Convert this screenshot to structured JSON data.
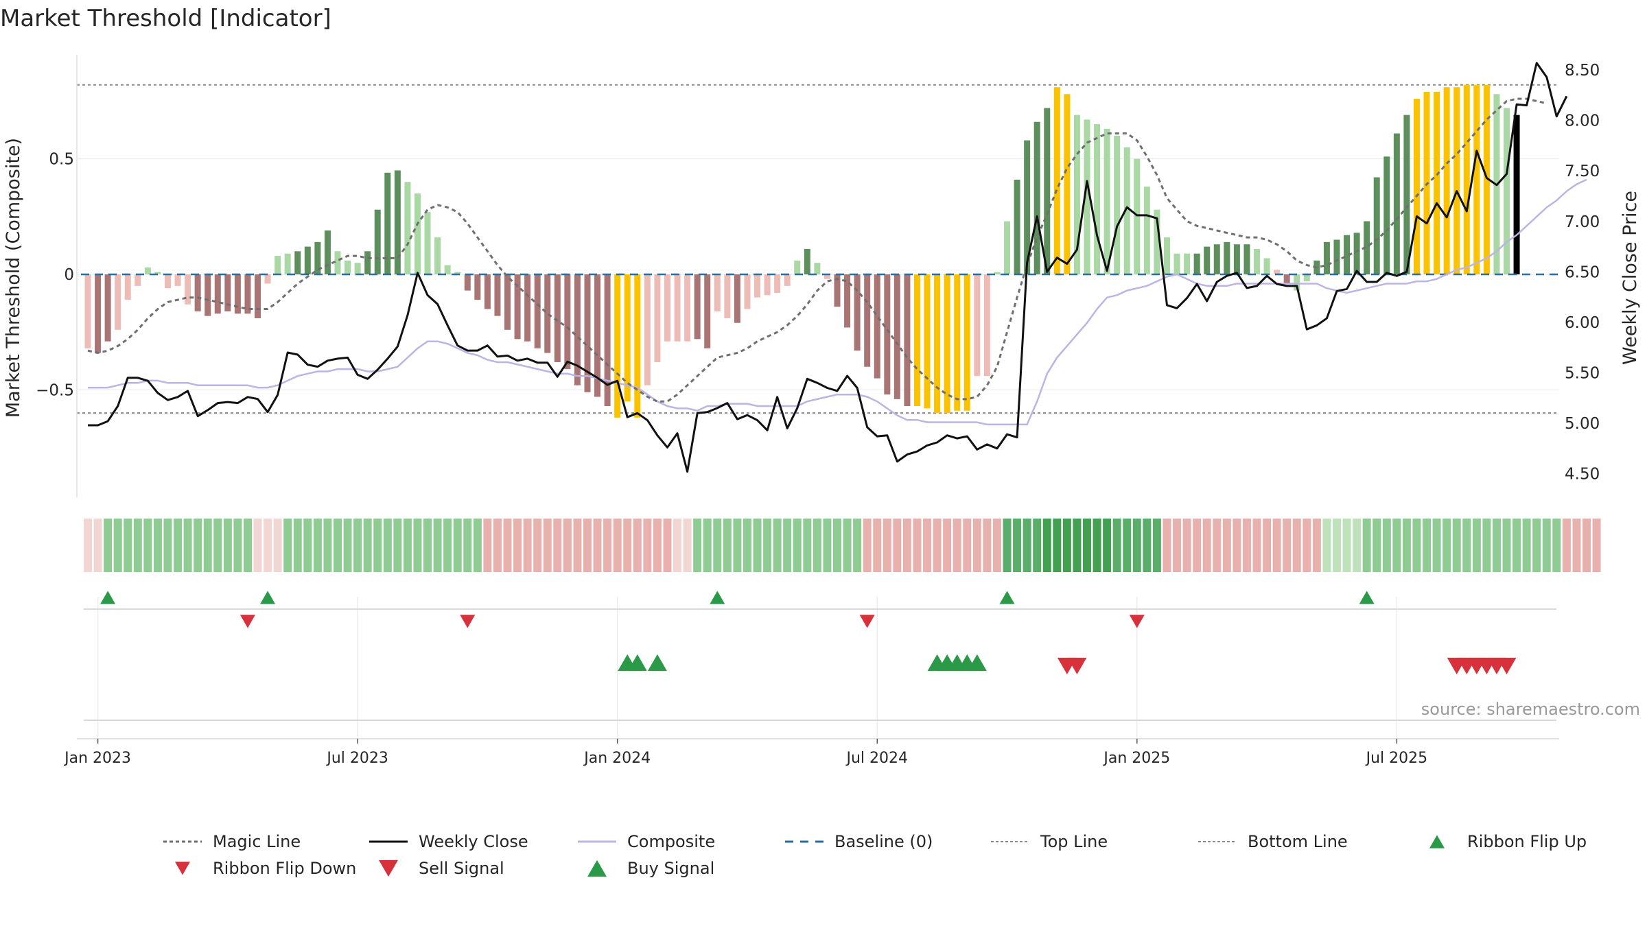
{
  "chart_data": {
    "type": "bar",
    "title": "Market Threshold [Indicator]",
    "ylabel": "Market Threshold (Composite)",
    "y2label": "Weekly Close Price",
    "source": "source: sharemaestro.com",
    "ylim": [
      -0.95,
      0.95
    ],
    "y2lim": [
      4.3,
      8.65
    ],
    "yticks": [
      {
        "v": 0.5,
        "t": "0.5"
      },
      {
        "v": 0,
        "t": "0"
      },
      {
        "v": -0.5,
        "t": "−0.5"
      }
    ],
    "y2ticks": [
      {
        "v": 8.5,
        "t": "8.50"
      },
      {
        "v": 8.0,
        "t": "8.00"
      },
      {
        "v": 7.5,
        "t": "7.50"
      },
      {
        "v": 7.0,
        "t": "7.00"
      },
      {
        "v": 6.5,
        "t": "6.50"
      },
      {
        "v": 6.0,
        "t": "6.00"
      },
      {
        "v": 5.5,
        "t": "5.50"
      },
      {
        "v": 5.0,
        "t": "5.00"
      },
      {
        "v": 4.5,
        "t": "4.50"
      }
    ],
    "xticks": [
      {
        "i": 1,
        "t": "Jan 2023"
      },
      {
        "i": 27,
        "t": "Jul 2023"
      },
      {
        "i": 53,
        "t": "Jan 2024"
      },
      {
        "i": 79,
        "t": "Jul 2024"
      },
      {
        "i": 105,
        "t": "Jan 2025"
      },
      {
        "i": 131,
        "t": "Jul 2025"
      }
    ],
    "top_line": 0.82,
    "bottom_line": -0.6,
    "colors": {
      "strong_up": "#5c8f5c",
      "weak_up": "#a9d8a5",
      "strong_down": "#a87574",
      "weak_down": "#edbcb7",
      "extreme": "#fbc200",
      "close": "#111111",
      "composite": "#bcb4e4",
      "magic": "#6f6f6f",
      "baseline": "#2b6c9e",
      "threshold": "#888888",
      "buy": "#2b9a48",
      "sell": "#d8313c",
      "grid": "#e8e8e8"
    },
    "series": [
      {
        "name": "Composite Bars",
        "values": [
          -0.32,
          -0.34,
          -0.29,
          -0.24,
          -0.11,
          -0.05,
          0.03,
          0.01,
          -0.06,
          -0.05,
          -0.13,
          -0.16,
          -0.18,
          -0.17,
          -0.16,
          -0.17,
          -0.17,
          -0.19,
          -0.04,
          0.08,
          0.09,
          0.1,
          0.12,
          0.14,
          0.19,
          0.1,
          0.06,
          0.05,
          0.1,
          0.28,
          0.44,
          0.45,
          0.4,
          0.35,
          0.27,
          0.16,
          0.04,
          0.01,
          -0.07,
          -0.11,
          -0.15,
          -0.18,
          -0.24,
          -0.28,
          -0.29,
          -0.32,
          -0.34,
          -0.38,
          -0.41,
          -0.48,
          -0.51,
          -0.53,
          -0.57,
          -0.62,
          -0.55,
          -0.62,
          -0.48,
          -0.38,
          -0.29,
          -0.29,
          -0.29,
          -0.28,
          -0.32,
          -0.16,
          -0.19,
          -0.21,
          -0.15,
          -0.1,
          -0.09,
          -0.08,
          -0.05,
          0.06,
          0.11,
          0.05,
          -0.02,
          -0.14,
          -0.23,
          -0.33,
          -0.4,
          -0.45,
          -0.52,
          -0.54,
          -0.57,
          -0.57,
          -0.58,
          -0.6,
          -0.6,
          -0.59,
          -0.59,
          -0.44,
          -0.44,
          0.01,
          0.23,
          0.41,
          0.58,
          0.66,
          0.72,
          0.81,
          0.78,
          0.69,
          0.67,
          0.65,
          0.63,
          0.6,
          0.55,
          0.5,
          0.38,
          0.28,
          0.16,
          0.09,
          0.09,
          0.09,
          0.12,
          0.13,
          0.14,
          0.13,
          0.13,
          0.11,
          0.07,
          0.02,
          -0.04,
          -0.07,
          -0.03,
          0.06,
          0.14,
          0.15,
          0.17,
          0.18,
          0.23,
          0.42,
          0.51,
          0.61,
          0.69,
          0.76,
          0.79,
          0.79,
          0.81,
          0.81,
          0.82,
          0.82,
          0.82,
          0.78,
          0.72,
          0.69
        ]
      },
      {
        "name": "Bar Style",
        "values": [
          "wd",
          "sd",
          "sd",
          "wd",
          "wd",
          "wd",
          "wu",
          "wu",
          "wd",
          "wd",
          "wd",
          "sd",
          "sd",
          "sd",
          "sd",
          "sd",
          "sd",
          "sd",
          "wd",
          "wu",
          "wu",
          "su",
          "su",
          "su",
          "su",
          "wu",
          "wu",
          "wu",
          "su",
          "su",
          "su",
          "su",
          "wu",
          "wu",
          "wu",
          "wu",
          "wu",
          "wu",
          "sd",
          "sd",
          "sd",
          "sd",
          "sd",
          "sd",
          "sd",
          "sd",
          "sd",
          "sd",
          "sd",
          "sd",
          "sd",
          "sd",
          "sd",
          "ex",
          "ex",
          "ex",
          "wd",
          "wd",
          "wd",
          "wd",
          "wd",
          "sd",
          "sd",
          "wd",
          "wd",
          "sd",
          "wd",
          "wd",
          "wd",
          "wd",
          "wd",
          "wu",
          "su",
          "wu",
          "wd",
          "sd",
          "sd",
          "sd",
          "sd",
          "sd",
          "sd",
          "sd",
          "sd",
          "ex",
          "ex",
          "ex",
          "ex",
          "ex",
          "ex",
          "wd",
          "wd",
          "wu",
          "wu",
          "su",
          "su",
          "su",
          "su",
          "ex",
          "ex",
          "wu",
          "wu",
          "wu",
          "wu",
          "wu",
          "wu",
          "wu",
          "wu",
          "wu",
          "wu",
          "wu",
          "wu",
          "su",
          "su",
          "su",
          "su",
          "su",
          "su",
          "wu",
          "wu",
          "wd",
          "sd",
          "wu",
          "wu",
          "su",
          "su",
          "su",
          "su",
          "su",
          "su",
          "su",
          "su",
          "su",
          "su",
          "ex",
          "ex",
          "ex",
          "ex",
          "ex",
          "ex",
          "ex",
          "ex",
          "wu",
          "wu"
        ]
      },
      {
        "name": "Weekly Close",
        "values": [
          4.98,
          4.98,
          5.02,
          5.17,
          5.45,
          5.45,
          5.42,
          5.3,
          5.23,
          5.26,
          5.32,
          5.07,
          5.13,
          5.2,
          5.21,
          5.2,
          5.26,
          5.24,
          5.11,
          5.28,
          5.7,
          5.68,
          5.58,
          5.56,
          5.62,
          5.64,
          5.65,
          5.48,
          5.44,
          5.53,
          5.64,
          5.76,
          6.07,
          6.49,
          6.27,
          6.18,
          5.97,
          5.77,
          5.72,
          5.72,
          5.77,
          5.66,
          5.67,
          5.62,
          5.64,
          5.6,
          5.6,
          5.46,
          5.61,
          5.57,
          5.51,
          5.45,
          5.38,
          5.42,
          5.06,
          5.1,
          5.03,
          4.88,
          4.76,
          4.9,
          4.52,
          5.1,
          5.11,
          5.15,
          5.2,
          5.04,
          5.08,
          5.03,
          4.93,
          5.26,
          4.95,
          5.15,
          5.44,
          5.4,
          5.35,
          5.32,
          5.47,
          5.35,
          4.96,
          4.87,
          4.88,
          4.62,
          4.69,
          4.72,
          4.78,
          4.81,
          4.88,
          4.85,
          4.87,
          4.74,
          4.79,
          4.75,
          4.89,
          4.86,
          6.59,
          7.05,
          6.5,
          6.64,
          6.58,
          6.72,
          7.4,
          6.86,
          6.51,
          6.95,
          7.14,
          7.06,
          7.06,
          7.03,
          6.17,
          6.14,
          6.24,
          6.38,
          6.21,
          6.4,
          6.46,
          6.49,
          6.34,
          6.36,
          6.46,
          6.38,
          6.36,
          6.36,
          5.93,
          5.97,
          6.04,
          6.31,
          6.33,
          6.51,
          6.4,
          6.4,
          6.49,
          6.46,
          6.5,
          7.05,
          6.98,
          7.18,
          7.04,
          7.3,
          7.1,
          7.7,
          7.43,
          7.36,
          7.47,
          8.16,
          8.15,
          8.57,
          8.43,
          8.04,
          8.24
        ]
      },
      {
        "name": "Composite",
        "values": [
          -0.49,
          -0.49,
          -0.49,
          -0.48,
          -0.47,
          -0.47,
          -0.46,
          -0.46,
          -0.47,
          -0.47,
          -0.47,
          -0.48,
          -0.48,
          -0.48,
          -0.48,
          -0.48,
          -0.48,
          -0.49,
          -0.49,
          -0.48,
          -0.46,
          -0.44,
          -0.43,
          -0.42,
          -0.42,
          -0.41,
          -0.41,
          -0.41,
          -0.42,
          -0.42,
          -0.41,
          -0.4,
          -0.36,
          -0.32,
          -0.29,
          -0.29,
          -0.3,
          -0.32,
          -0.34,
          -0.35,
          -0.37,
          -0.38,
          -0.38,
          -0.39,
          -0.4,
          -0.41,
          -0.42,
          -0.43,
          -0.43,
          -0.44,
          -0.44,
          -0.45,
          -0.46,
          -0.47,
          -0.48,
          -0.49,
          -0.52,
          -0.55,
          -0.57,
          -0.58,
          -0.58,
          -0.59,
          -0.57,
          -0.57,
          -0.56,
          -0.56,
          -0.56,
          -0.57,
          -0.57,
          -0.57,
          -0.57,
          -0.57,
          -0.55,
          -0.54,
          -0.53,
          -0.52,
          -0.52,
          -0.52,
          -0.53,
          -0.55,
          -0.58,
          -0.61,
          -0.63,
          -0.63,
          -0.64,
          -0.64,
          -0.64,
          -0.64,
          -0.64,
          -0.64,
          -0.65,
          -0.65,
          -0.65,
          -0.65,
          -0.65,
          -0.55,
          -0.43,
          -0.36,
          -0.31,
          -0.26,
          -0.21,
          -0.15,
          -0.1,
          -0.09,
          -0.07,
          -0.06,
          -0.05,
          -0.03,
          -0.01,
          0.0,
          -0.02,
          -0.04,
          -0.05,
          -0.05,
          -0.05,
          -0.04,
          -0.04,
          -0.04,
          -0.04,
          -0.04,
          -0.04,
          -0.04,
          -0.04,
          -0.04,
          -0.06,
          -0.07,
          -0.08,
          -0.07,
          -0.06,
          -0.05,
          -0.04,
          -0.04,
          -0.04,
          -0.03,
          -0.03,
          -0.02,
          0.0,
          0.02,
          0.03,
          0.05,
          0.07,
          0.1,
          0.14,
          0.17,
          0.21,
          0.25,
          0.29,
          0.32,
          0.36,
          0.39,
          0.41
        ]
      },
      {
        "name": "Magic Line",
        "values": [
          -0.33,
          -0.34,
          -0.33,
          -0.31,
          -0.28,
          -0.24,
          -0.19,
          -0.15,
          -0.12,
          -0.11,
          -0.1,
          -0.1,
          -0.11,
          -0.12,
          -0.13,
          -0.14,
          -0.15,
          -0.15,
          -0.15,
          -0.12,
          -0.08,
          -0.04,
          -0.01,
          0.02,
          0.04,
          0.06,
          0.08,
          0.08,
          0.07,
          0.07,
          0.07,
          0.07,
          0.13,
          0.22,
          0.28,
          0.3,
          0.29,
          0.27,
          0.22,
          0.16,
          0.1,
          0.04,
          -0.01,
          -0.05,
          -0.09,
          -0.13,
          -0.17,
          -0.2,
          -0.23,
          -0.27,
          -0.31,
          -0.35,
          -0.39,
          -0.43,
          -0.47,
          -0.5,
          -0.53,
          -0.55,
          -0.55,
          -0.52,
          -0.48,
          -0.44,
          -0.4,
          -0.36,
          -0.35,
          -0.34,
          -0.32,
          -0.29,
          -0.27,
          -0.25,
          -0.22,
          -0.18,
          -0.13,
          -0.07,
          -0.03,
          -0.02,
          -0.03,
          -0.07,
          -0.12,
          -0.18,
          -0.24,
          -0.3,
          -0.36,
          -0.41,
          -0.45,
          -0.49,
          -0.52,
          -0.54,
          -0.54,
          -0.53,
          -0.48,
          -0.4,
          -0.25,
          -0.1,
          0.04,
          0.16,
          0.26,
          0.37,
          0.46,
          0.52,
          0.57,
          0.59,
          0.61,
          0.61,
          0.61,
          0.58,
          0.51,
          0.43,
          0.33,
          0.28,
          0.23,
          0.21,
          0.2,
          0.19,
          0.18,
          0.17,
          0.16,
          0.16,
          0.15,
          0.13,
          0.1,
          0.06,
          0.04,
          0.03,
          0.04,
          0.06,
          0.08,
          0.1,
          0.12,
          0.15,
          0.19,
          0.24,
          0.29,
          0.34,
          0.39,
          0.43,
          0.48,
          0.52,
          0.57,
          0.62,
          0.67,
          0.71,
          0.75,
          0.76,
          0.76,
          0.75,
          0.74
        ]
      },
      {
        "name": "Ribbon",
        "values": [
          1,
          1,
          2,
          2,
          2,
          2,
          2,
          2,
          2,
          2,
          2,
          2,
          2,
          2,
          2,
          2,
          2,
          1,
          1,
          1,
          2,
          2,
          2,
          2,
          2,
          2,
          2,
          2,
          2,
          2,
          2,
          2,
          2,
          2,
          2,
          2,
          2,
          2,
          2,
          2,
          2,
          2,
          2,
          2,
          2,
          2,
          2,
          2,
          2,
          2,
          2,
          2,
          2,
          2,
          2,
          2,
          2,
          2,
          2,
          1,
          1,
          2,
          2,
          2,
          2,
          2,
          2,
          2,
          2,
          2,
          2,
          2,
          2,
          2,
          2,
          2,
          2,
          2,
          2,
          2,
          2,
          2,
          2,
          2,
          2,
          2,
          2,
          2,
          2,
          2,
          2,
          2,
          3,
          3,
          3,
          3,
          4,
          4,
          4,
          4,
          4,
          4,
          4,
          3,
          3,
          3,
          3,
          3,
          2,
          2,
          2,
          2,
          2,
          2,
          2,
          2,
          2,
          2,
          2,
          2,
          2,
          2,
          2,
          2,
          1,
          1,
          1,
          1,
          2,
          2,
          2,
          2,
          2,
          2,
          2,
          2,
          2,
          2,
          2,
          2,
          2,
          2,
          2,
          2,
          2,
          2,
          2,
          2,
          2,
          2,
          2,
          2
        ]
      },
      {
        "name": "Ribbon Direction",
        "values": [
          "d",
          "d",
          "u",
          "u",
          "u",
          "u",
          "u",
          "u",
          "u",
          "u",
          "u",
          "u",
          "u",
          "u",
          "u",
          "u",
          "u",
          "d",
          "d",
          "d",
          "u",
          "u",
          "u",
          "u",
          "u",
          "u",
          "u",
          "u",
          "u",
          "u",
          "u",
          "u",
          "u",
          "u",
          "u",
          "u",
          "u",
          "u",
          "u",
          "u",
          "d",
          "d",
          "d",
          "d",
          "d",
          "d",
          "d",
          "d",
          "d",
          "d",
          "d",
          "d",
          "d",
          "d",
          "d",
          "d",
          "d",
          "d",
          "d",
          "d",
          "d",
          "u",
          "u",
          "u",
          "u",
          "u",
          "u",
          "u",
          "u",
          "u",
          "u",
          "u",
          "u",
          "u",
          "u",
          "u",
          "u",
          "u",
          "d",
          "d",
          "d",
          "d",
          "d",
          "d",
          "d",
          "d",
          "d",
          "d",
          "d",
          "d",
          "d",
          "d",
          "u",
          "u",
          "u",
          "u",
          "u",
          "u",
          "u",
          "u",
          "u",
          "u",
          "u",
          "u",
          "u",
          "u",
          "u",
          "u",
          "d",
          "d",
          "d",
          "d",
          "d",
          "d",
          "d",
          "d",
          "d",
          "d",
          "d",
          "d",
          "d",
          "d",
          "d",
          "d",
          "u",
          "u",
          "u",
          "u",
          "u",
          "u",
          "u",
          "u",
          "u",
          "u",
          "u",
          "u",
          "u",
          "u",
          "u",
          "u",
          "u",
          "u",
          "u",
          "u",
          "u",
          "u",
          "u",
          "u"
        ]
      },
      {
        "name": "Ribbon Flip Up",
        "values": [
          2,
          18,
          63,
          92,
          128
        ]
      },
      {
        "name": "Ribbon Flip Down",
        "values": [
          16,
          38,
          78,
          105
        ]
      },
      {
        "name": "Buy Signal",
        "values": [
          54,
          55,
          57,
          85,
          86,
          87,
          88,
          89
        ]
      },
      {
        "name": "Sell Signal",
        "values": [
          98,
          99,
          137,
          138,
          139,
          140,
          141,
          142
        ]
      }
    ],
    "legend": [
      {
        "label": "Magic Line",
        "kind": "magic"
      },
      {
        "label": "Weekly Close",
        "kind": "close"
      },
      {
        "label": "Composite",
        "kind": "composite"
      },
      {
        "label": "Baseline (0)",
        "kind": "baseline"
      },
      {
        "label": "Top Line",
        "kind": "top"
      },
      {
        "label": "Bottom Line",
        "kind": "bottom"
      },
      {
        "label": "Ribbon Flip Up",
        "kind": "flipup"
      },
      {
        "label": "Ribbon Flip Down",
        "kind": "flipdown"
      },
      {
        "label": "Sell Signal",
        "kind": "sell"
      },
      {
        "label": "Buy Signal",
        "kind": "buy"
      }
    ]
  }
}
